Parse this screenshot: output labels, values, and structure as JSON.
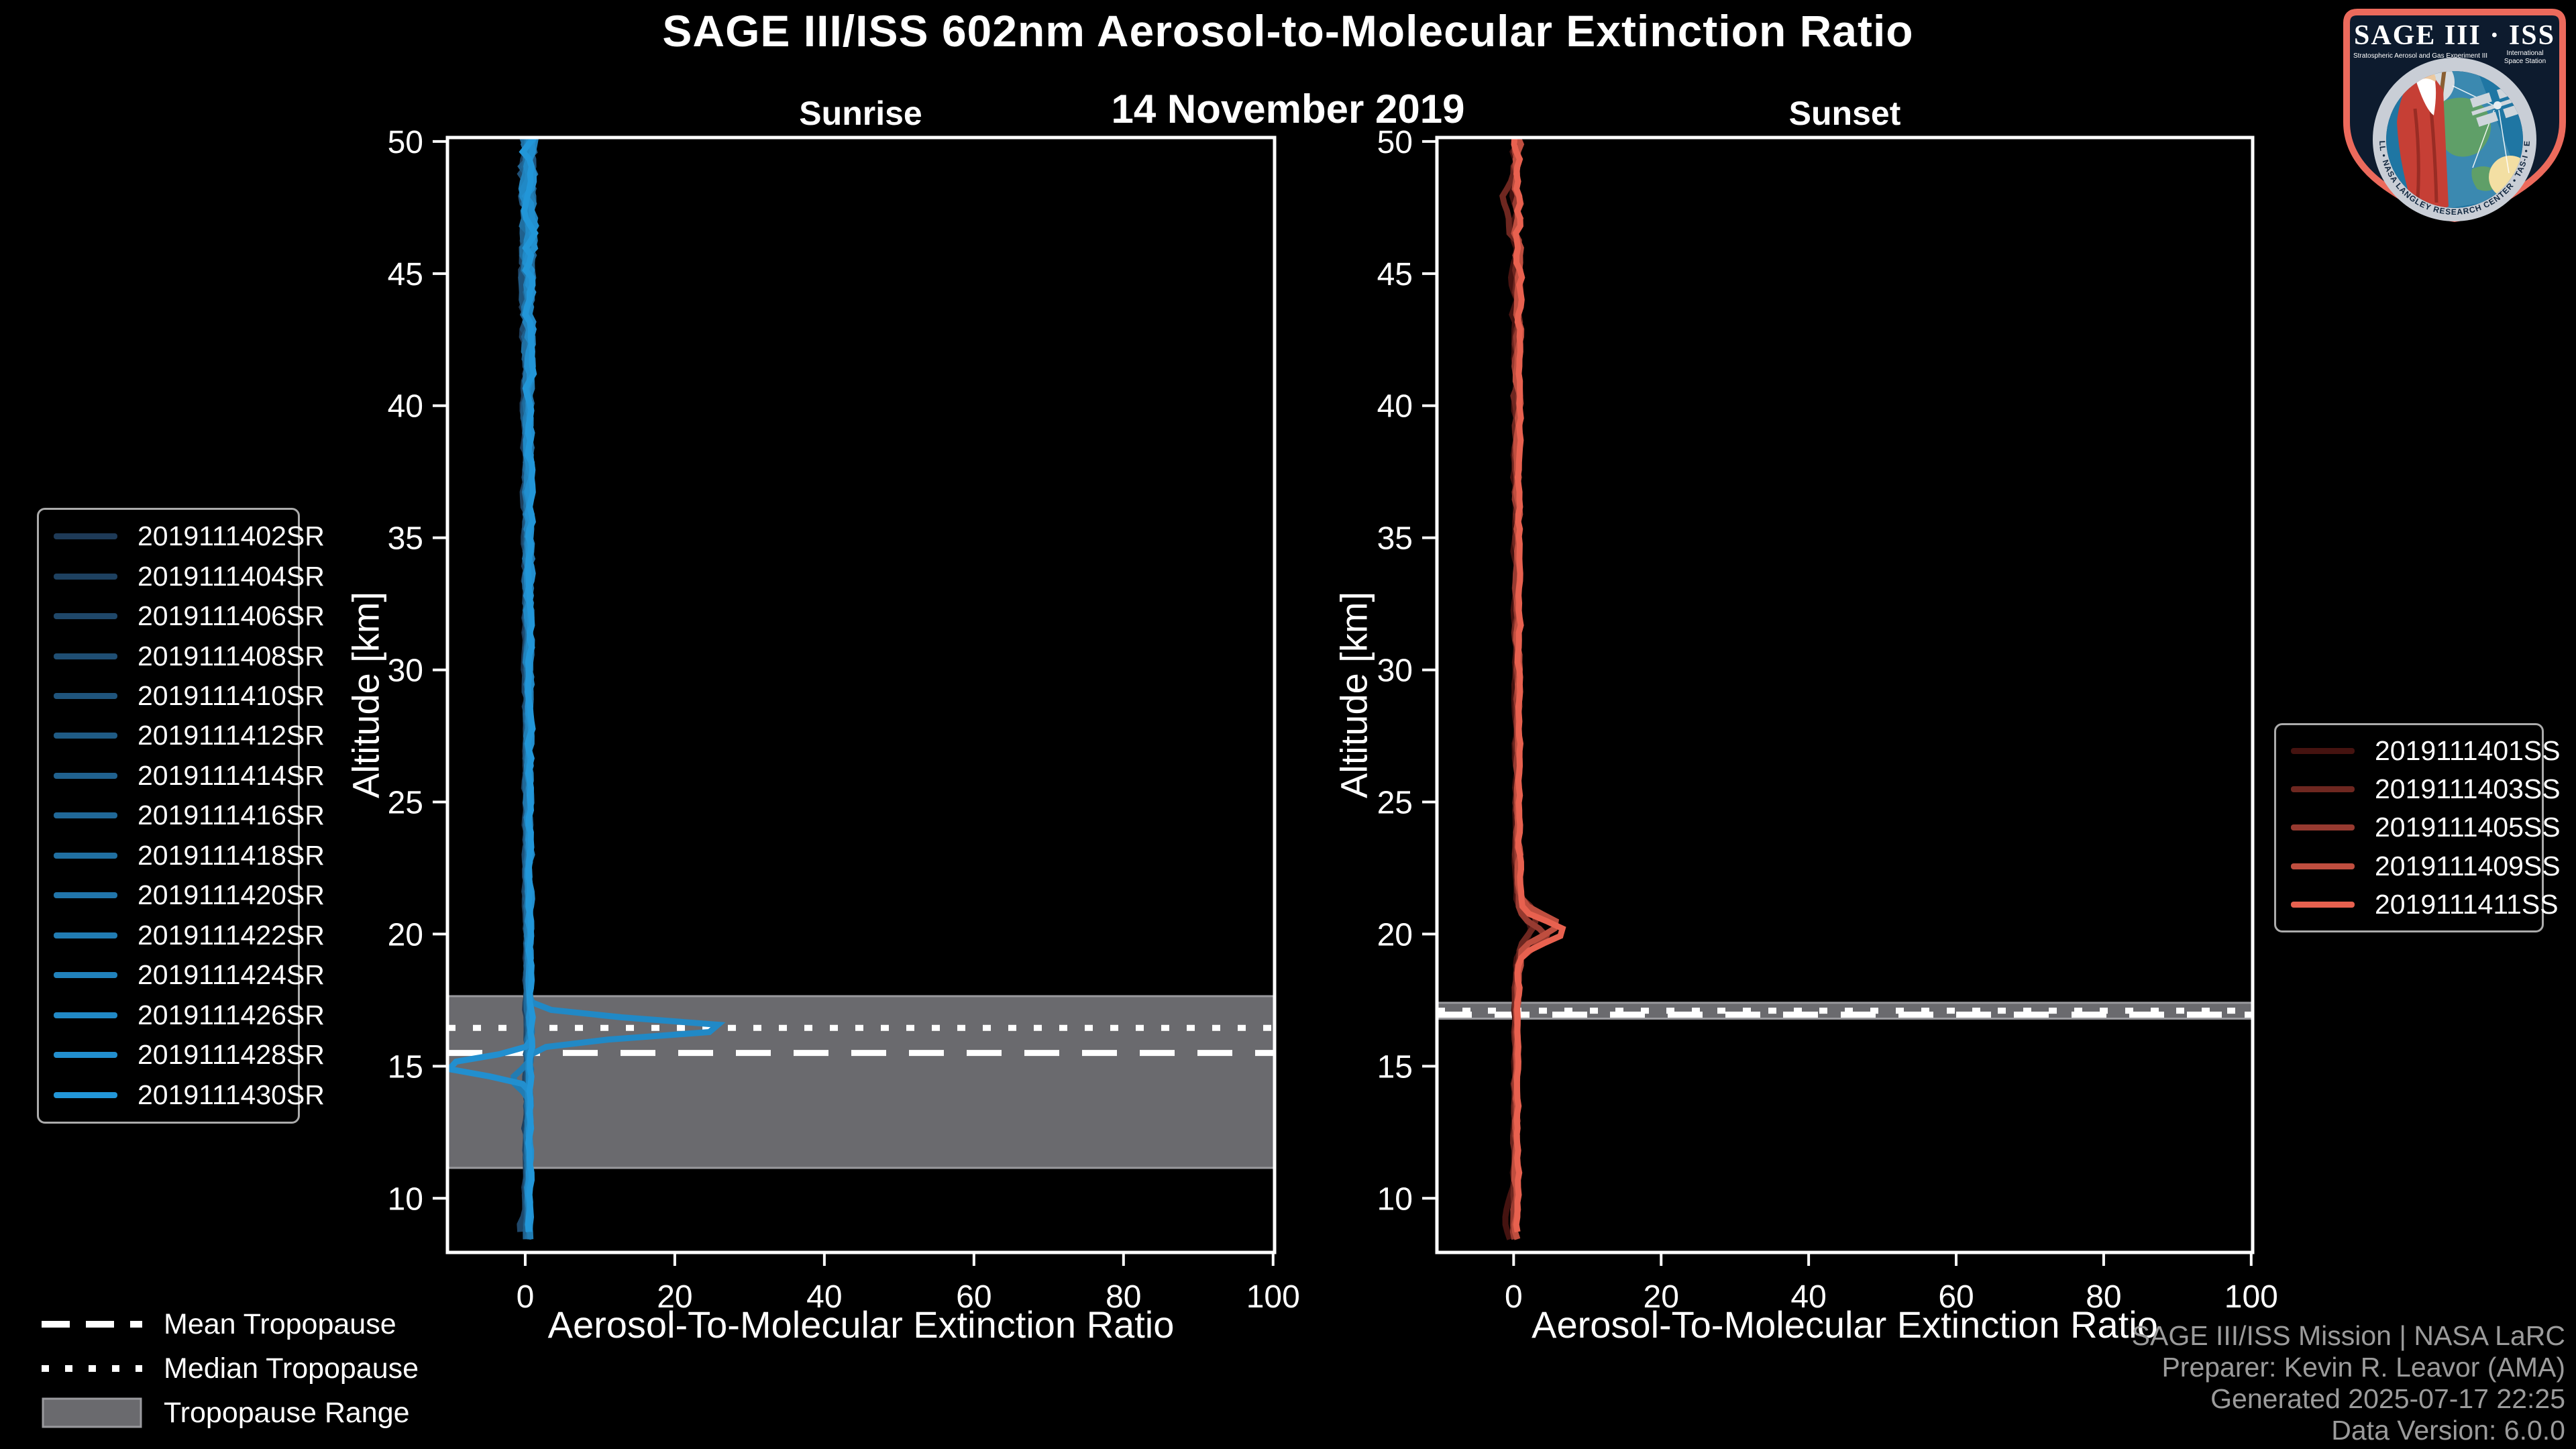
{
  "title": "SAGE III/ISS 602nm Aerosol-to-Molecular Extinction Ratio",
  "subtitle": "14 November 2019",
  "axes": {
    "xlabel": "Aerosol-To-Molecular Extinction Ratio",
    "ylabel": "Altitude [km]"
  },
  "tropopause_legend": {
    "mean_label": "Mean Tropopause",
    "median_label": "Median Tropopause",
    "range_label": "Tropopause Range",
    "line_color": "#ffffff",
    "range_fill": "#6a6a6e",
    "range_edge": "#9a9a9e"
  },
  "credit": {
    "line1": "SAGE III/ISS Mission | NASA LaRC",
    "line2": "Preparer: Kevin R. Leavor (AMA)",
    "line3": "Generated 2025-07-17 22:25",
    "line4": "Data Version: 6.0.0",
    "color": "#9b9b9b"
  },
  "logo": {
    "title": "SAGE III · ISS",
    "sub_left": "Stratospheric Aerosol and Gas Experiment III",
    "sub_right_1": "International",
    "sub_right_2": "Space Station",
    "ring_text": "BALL • NASA LANGLEY RESEARCH CENTER • TAS-I • ESA",
    "border_color": "#ec6a5c"
  },
  "chart_data": [
    {
      "type": "line",
      "title": "Sunrise",
      "xlabel": "Aerosol-To-Molecular Extinction Ratio",
      "ylabel": "Altitude [km]",
      "xlim": [
        -10.4,
        100.2
      ],
      "ylim": [
        7.95,
        50.15
      ],
      "xticks": [
        0,
        20,
        40,
        60,
        80,
        100
      ],
      "yticks": [
        10,
        15,
        20,
        25,
        30,
        35,
        40,
        45,
        50
      ],
      "grid": false,
      "legend_position": "left-outside",
      "series": [
        "2019111402SR",
        "2019111404SR",
        "2019111406SR",
        "2019111408SR",
        "2019111410SR",
        "2019111412SR",
        "2019111414SR",
        "2019111416SR",
        "2019111418SR",
        "2019111420SR",
        "2019111422SR",
        "2019111424SR",
        "2019111426SR",
        "2019111428SR",
        "2019111430SR"
      ],
      "color_start": "#1e3a57",
      "color_end": "#2296d8",
      "seed": 7,
      "line_width": 9,
      "base_profile": [
        [
          50.45,
          0.3
        ],
        [
          46,
          0.4
        ],
        [
          40,
          0.35
        ],
        [
          32,
          0.4
        ],
        [
          24,
          0.35
        ],
        [
          18,
          0.45
        ],
        [
          16,
          0.55
        ],
        [
          13,
          0.4
        ],
        [
          10,
          0.35
        ],
        [
          8,
          0.4
        ]
      ],
      "noise_profile": [
        [
          50.45,
          1.25
        ],
        [
          47,
          1.0
        ],
        [
          44,
          0.8
        ],
        [
          40,
          0.55
        ],
        [
          34,
          0.5
        ],
        [
          28,
          0.4
        ],
        [
          22,
          0.35
        ],
        [
          18,
          0.3
        ],
        [
          15,
          0.35
        ],
        [
          11,
          0.3
        ],
        [
          8,
          0.35
        ]
      ],
      "features": [
        {
          "series": 12,
          "alt": 16.45,
          "peak": 27,
          "width": 0.45
        },
        {
          "series": 13,
          "alt": 15.0,
          "peak": -11.5,
          "width": 0.45
        },
        {
          "series": 10,
          "alt": 14.5,
          "peak": -2.3,
          "width": 0.45
        },
        {
          "series": 2,
          "alt": 8.9,
          "peak": -0.9,
          "width": 0.5
        }
      ],
      "tropopause": {
        "mean_km": 15.5,
        "median_km": 16.45,
        "range_km": [
          11.15,
          17.65
        ]
      }
    },
    {
      "type": "line",
      "title": "Sunset",
      "xlabel": "Aerosol-To-Molecular Extinction Ratio",
      "ylabel": "Altitude [km]",
      "xlim": [
        -10.4,
        100.2
      ],
      "ylim": [
        7.95,
        50.15
      ],
      "xticks": [
        0,
        20,
        40,
        60,
        80,
        100
      ],
      "yticks": [
        10,
        15,
        20,
        25,
        30,
        35,
        40,
        45,
        50
      ],
      "grid": false,
      "legend_position": "right-outside",
      "series": [
        "2019111401SS",
        "2019111403SS",
        "2019111405SS",
        "2019111409SS",
        "2019111411SS"
      ],
      "color_start": "#451310",
      "color_end": "#e8614f",
      "seed": 13,
      "line_width": 9,
      "base_profile": [
        [
          50.45,
          0.4
        ],
        [
          44,
          0.5
        ],
        [
          36,
          0.45
        ],
        [
          28,
          0.5
        ],
        [
          22,
          0.6
        ],
        [
          20,
          0.9
        ],
        [
          18.5,
          0.5
        ],
        [
          16,
          0.35
        ],
        [
          12,
          0.25
        ],
        [
          8.5,
          0.2
        ]
      ],
      "noise_profile": [
        [
          50.45,
          0.8
        ],
        [
          46,
          0.7
        ],
        [
          42,
          0.45
        ],
        [
          36,
          0.35
        ],
        [
          30,
          0.3
        ],
        [
          24,
          0.3
        ],
        [
          20,
          0.35
        ],
        [
          16,
          0.25
        ],
        [
          12,
          0.3
        ],
        [
          8.5,
          0.35
        ]
      ],
      "features": [
        {
          "series": 4,
          "alt": 20.1,
          "peak": 5.8,
          "width": 0.55
        },
        {
          "series": 3,
          "alt": 20.35,
          "peak": 4.8,
          "width": 0.6
        },
        {
          "series": 2,
          "alt": 19.9,
          "peak": 3.4,
          "width": 0.6
        },
        {
          "series": 1,
          "alt": 20.55,
          "peak": 2.4,
          "width": 0.7
        },
        {
          "series": 0,
          "alt": 20.2,
          "peak": 1.8,
          "width": 0.7
        },
        {
          "series": 1,
          "alt": 47.6,
          "peak": -1.6,
          "width": 0.9
        },
        {
          "series": 0,
          "alt": 9.2,
          "peak": -1.4,
          "width": 0.6
        }
      ],
      "tropopause": {
        "mean_km": 16.95,
        "median_km": 17.1,
        "range_km": [
          16.8,
          17.4
        ]
      }
    }
  ]
}
